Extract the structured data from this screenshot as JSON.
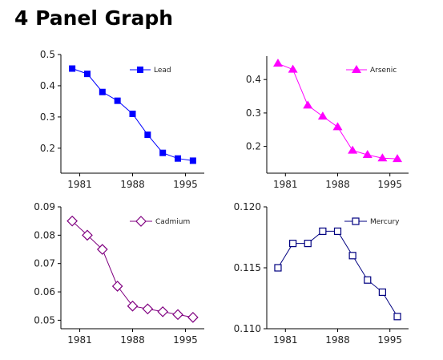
{
  "page_title": "4 Panel Graph",
  "chart_data": [
    {
      "type": "line",
      "series": [
        {
          "name": "Lead",
          "x": [
            1980,
            1982,
            1984,
            1986,
            1988,
            1990,
            1992,
            1994,
            1996
          ],
          "values": [
            0.455,
            0.438,
            0.38,
            0.352,
            0.31,
            0.243,
            0.185,
            0.167,
            0.16
          ]
        }
      ],
      "marker": "square-filled",
      "color": "#0000FF",
      "xlim": [
        1978.5,
        1997.5
      ],
      "xticks": [
        1981,
        1988,
        1995
      ],
      "xtick_labels": [
        "1981",
        "1988",
        "1995"
      ],
      "ylim": [
        0.12,
        0.5
      ],
      "yticks": [
        0.2,
        0.3,
        0.4,
        0.5
      ],
      "ytick_labels": [
        "0.2",
        "0.3",
        "0.4",
        "0.5"
      ],
      "legend": "top-right",
      "grid": false
    },
    {
      "type": "line",
      "series": [
        {
          "name": "Arsenic",
          "x": [
            1980,
            1982,
            1984,
            1986,
            1988,
            1990,
            1992,
            1994,
            1996
          ],
          "values": [
            0.448,
            0.43,
            0.323,
            0.29,
            0.258,
            0.188,
            0.175,
            0.165,
            0.163
          ]
        }
      ],
      "marker": "triangle-filled",
      "color": "#FF00FF",
      "xlim": [
        1978.5,
        1997.5
      ],
      "xticks": [
        1981,
        1988,
        1995
      ],
      "xtick_labels": [
        "1981",
        "1988",
        "1995"
      ],
      "ylim": [
        0.12,
        0.47
      ],
      "yticks": [
        0.2,
        0.3,
        0.4
      ],
      "ytick_labels": [
        "0.2",
        "0.3",
        "0.4"
      ],
      "legend": "top-right",
      "grid": false
    },
    {
      "type": "line",
      "series": [
        {
          "name": "Cadmium",
          "x": [
            1980,
            1982,
            1984,
            1986,
            1988,
            1990,
            1992,
            1994,
            1996
          ],
          "values": [
            0.085,
            0.08,
            0.075,
            0.062,
            0.055,
            0.054,
            0.053,
            0.052,
            0.051
          ]
        }
      ],
      "marker": "diamond-open",
      "color": "#800080",
      "xlim": [
        1978.5,
        1997.5
      ],
      "xticks": [
        1981,
        1988,
        1995
      ],
      "xtick_labels": [
        "1981",
        "1988",
        "1995"
      ],
      "ylim": [
        0.047,
        0.09
      ],
      "yticks": [
        0.05,
        0.06,
        0.07,
        0.08,
        0.09
      ],
      "ytick_labels": [
        "0.05",
        "0.06",
        "0.07",
        "0.08",
        "0.09"
      ],
      "legend": "top-right",
      "grid": false
    },
    {
      "type": "line",
      "series": [
        {
          "name": "Mercury",
          "x": [
            1980,
            1982,
            1984,
            1986,
            1988,
            1990,
            1992,
            1994,
            1996
          ],
          "values": [
            0.115,
            0.117,
            0.117,
            0.118,
            0.118,
            0.116,
            0.114,
            0.113,
            0.111
          ]
        }
      ],
      "marker": "square-open",
      "color": "#000080",
      "xlim": [
        1978.5,
        1997.5
      ],
      "xticks": [
        1981,
        1988,
        1995
      ],
      "xtick_labels": [
        "1981",
        "1988",
        "1995"
      ],
      "ylim": [
        0.11,
        0.12
      ],
      "yticks": [
        0.11,
        0.115,
        0.12
      ],
      "ytick_labels": [
        "0.110",
        "0.115",
        "0.120"
      ],
      "legend": "top-right",
      "grid": false
    }
  ]
}
